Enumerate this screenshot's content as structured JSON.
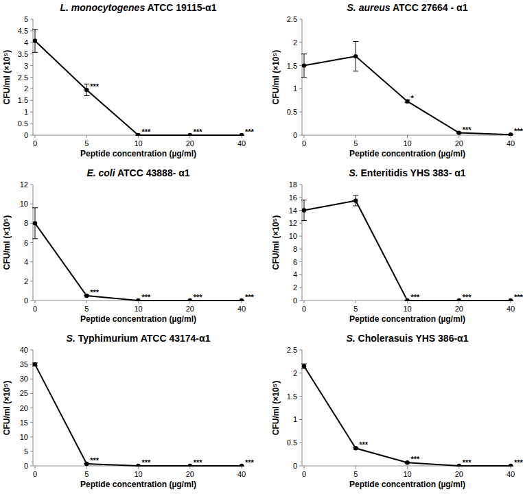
{
  "chart_data": [
    {
      "type": "line",
      "title": "L. monocytogenes ATCC 19115-α1",
      "x_label": "Peptide concentration (µg/ml)",
      "y_label": "CFU/ml (×10⁵)",
      "categories": [
        "0",
        "5",
        "10",
        "20",
        "40"
      ],
      "values": [
        4.07,
        1.95,
        0,
        0,
        0
      ],
      "errors": [
        0.5,
        0.25,
        0,
        0,
        0
      ],
      "annotations": [
        null,
        "***",
        "***",
        "***",
        "***"
      ],
      "color": "#000000",
      "marker": "circle",
      "ylim": [
        0,
        5
      ],
      "yticks": [
        0,
        0.5,
        1,
        1.5,
        2,
        2.5,
        3,
        3.5,
        4,
        4.5,
        5
      ],
      "grid": false
    },
    {
      "type": "line",
      "title": "S. aureus ATCC 27664 - α1",
      "x_label": "Peptide concentration (µg/ml)",
      "y_label": "CFU/ml (×10⁵)",
      "categories": [
        "0",
        "5",
        "10",
        "20",
        "40"
      ],
      "values": [
        1.5,
        1.7,
        0.73,
        0.05,
        0.01
      ],
      "errors": [
        0.25,
        0.32,
        0.03,
        0.01,
        0
      ],
      "annotations": [
        null,
        null,
        "*",
        "***",
        "***"
      ],
      "color": "#000000",
      "marker": "circle",
      "ylim": [
        0,
        2.5
      ],
      "yticks": [
        0,
        0.5,
        1,
        1.5,
        2,
        2.5
      ],
      "grid": false
    },
    {
      "type": "line",
      "title": "E. coli ATCC 43888- α1",
      "x_label": "Peptide concentration (µg/ml)",
      "y_label": "CFU/ml (×10⁵)",
      "categories": [
        "0",
        "5",
        "10",
        "20",
        "40"
      ],
      "values": [
        8,
        0.5,
        0,
        0,
        0
      ],
      "errors": [
        1.6,
        0.05,
        0,
        0,
        0
      ],
      "annotations": [
        null,
        "***",
        "***",
        "***",
        "***"
      ],
      "color": "#000000",
      "marker": "circle",
      "ylim": [
        0,
        12
      ],
      "yticks": [
        0,
        2,
        4,
        6,
        8,
        10,
        12
      ],
      "grid": false
    },
    {
      "type": "line",
      "title": "S. Enteritidis YHS 383- α1",
      "x_label": "Peptide concentration (µg/ml)",
      "y_label": "CFU/ml (×10⁵)",
      "categories": [
        "0",
        "5",
        "10",
        "20",
        "40"
      ],
      "values": [
        14,
        15.5,
        0,
        0,
        0
      ],
      "errors": [
        1.6,
        0.8,
        0,
        0,
        0
      ],
      "annotations": [
        null,
        null,
        "***",
        "***",
        "***"
      ],
      "color": "#000000",
      "marker": "circle",
      "ylim": [
        0,
        18
      ],
      "yticks": [
        0,
        2,
        4,
        6,
        8,
        10,
        12,
        14,
        16,
        18
      ],
      "grid": false
    },
    {
      "type": "line",
      "title": "S. Typhimurium ATCC 43174-α1",
      "x_label": "Peptide concentration (µg/ml)",
      "y_label": "CFU/ml (×10⁵)",
      "categories": [
        "0",
        "5",
        "10",
        "20",
        "40"
      ],
      "values": [
        35,
        0.7,
        0,
        0,
        0
      ],
      "errors": [
        0.5,
        0.1,
        0,
        0,
        0
      ],
      "annotations": [
        null,
        "***",
        "***",
        "***",
        "***"
      ],
      "color": "#000000",
      "marker": "circle",
      "ylim": [
        0,
        40
      ],
      "yticks": [
        0,
        5,
        10,
        15,
        20,
        25,
        30,
        35,
        40
      ],
      "grid": false
    },
    {
      "type": "line",
      "title": "S. Cholerasuis YHS 386-α1",
      "x_label": "Peptide concentration (µg/ml)",
      "y_label": "CFU/ml (×10⁵)",
      "categories": [
        "0",
        "5",
        "10",
        "20",
        "40"
      ],
      "values": [
        2.15,
        0.38,
        0.07,
        0,
        0
      ],
      "errors": [
        0.05,
        0.02,
        0.01,
        0,
        0
      ],
      "annotations": [
        null,
        "***",
        "***",
        "***",
        "***"
      ],
      "color": "#000000",
      "marker": "circle",
      "ylim": [
        0,
        2.5
      ],
      "yticks": [
        0,
        0.5,
        1,
        1.5,
        2,
        2.5
      ],
      "grid": false
    }
  ]
}
